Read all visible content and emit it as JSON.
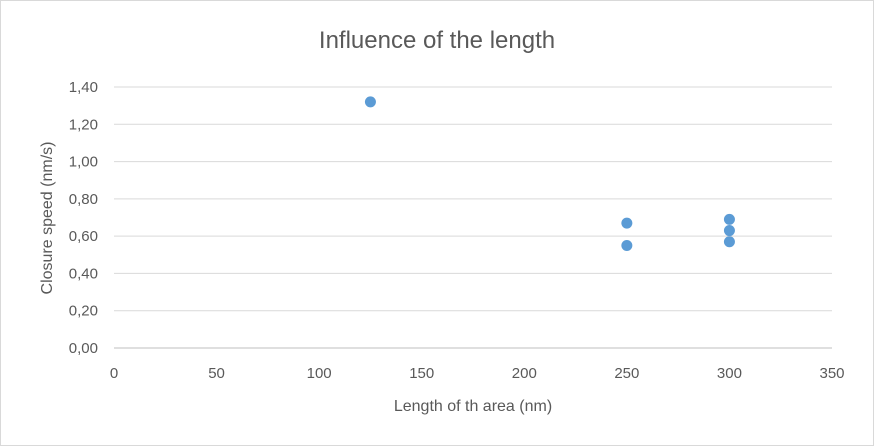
{
  "chart_data": {
    "type": "scatter",
    "title": "Influence of the length",
    "xlabel": "Length of th area (nm)",
    "ylabel": "Closure speed (nm/s)",
    "xlim": [
      0,
      350
    ],
    "ylim": [
      0,
      1.4
    ],
    "x_ticks": [
      "0",
      "50",
      "100",
      "150",
      "200",
      "250",
      "300",
      "350"
    ],
    "y_ticks": [
      "0,00",
      "0,20",
      "0,40",
      "0,60",
      "0,80",
      "1,00",
      "1,20",
      "1,40"
    ],
    "grid": "horizontal",
    "legend": "none",
    "marker_color": "#5b9bd5",
    "series": [
      {
        "points": [
          {
            "x": 125,
            "y": 1.32
          },
          {
            "x": 250,
            "y": 0.67
          },
          {
            "x": 250,
            "y": 0.55
          },
          {
            "x": 300,
            "y": 0.69
          },
          {
            "x": 300,
            "y": 0.63
          },
          {
            "x": 300,
            "y": 0.57
          }
        ]
      }
    ]
  }
}
